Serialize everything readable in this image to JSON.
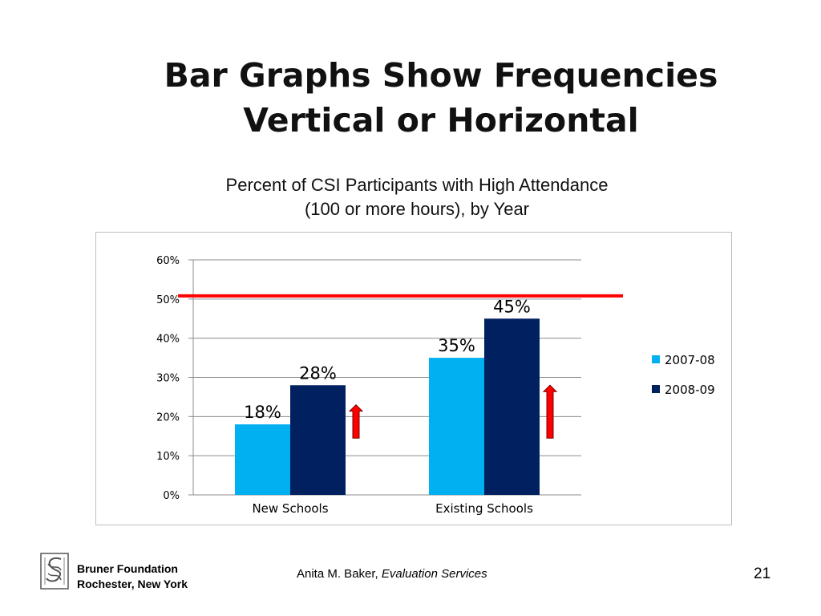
{
  "slide": {
    "title_line1": "Bar Graphs Show Frequencies",
    "title_line2": "Vertical or Horizontal",
    "caption_line1": "Percent of  CSI Participants with High Attendance",
    "caption_line2": "(100 or more hours),  by Year"
  },
  "chart_data": {
    "type": "bar",
    "title": "",
    "xlabel": "",
    "ylabel": "",
    "categories": [
      "New Schools",
      "Existing Schools"
    ],
    "series": [
      {
        "name": "2007-08",
        "values": [
          18,
          35
        ],
        "data_labels": [
          "18%",
          "35%"
        ],
        "color": "#00b0f0"
      },
      {
        "name": "2008-09",
        "values": [
          28,
          45
        ],
        "data_labels": [
          "28%",
          "45%"
        ],
        "color": "#002060"
      }
    ],
    "ylim": [
      0,
      60
    ],
    "yticks": [
      0,
      10,
      20,
      30,
      40,
      50,
      60
    ],
    "ytick_labels": [
      "0%",
      "10%",
      "20%",
      "30%",
      "40%",
      "50%",
      "60%"
    ],
    "grid": true,
    "legend_position": "right",
    "reference_line": {
      "value": 50,
      "color": "#ff0000"
    },
    "arrows": [
      {
        "category": "New Schools",
        "from": 14.5,
        "to": 23,
        "color": "#ff0000"
      },
      {
        "category": "Existing Schools",
        "from": 14.5,
        "to": 28,
        "color": "#ff0000"
      }
    ]
  },
  "footer": {
    "org_line1": "Bruner Foundation",
    "org_line2": "Rochester, New York",
    "author": "Anita M. Baker,",
    "author_title": "Evaluation Services",
    "page_number": "21"
  },
  "icons": {
    "logo": "bruner-foundation-logo-icon"
  },
  "colors": {
    "accent": "#ff0000",
    "series1": "#00b0f0",
    "series2": "#002060"
  }
}
